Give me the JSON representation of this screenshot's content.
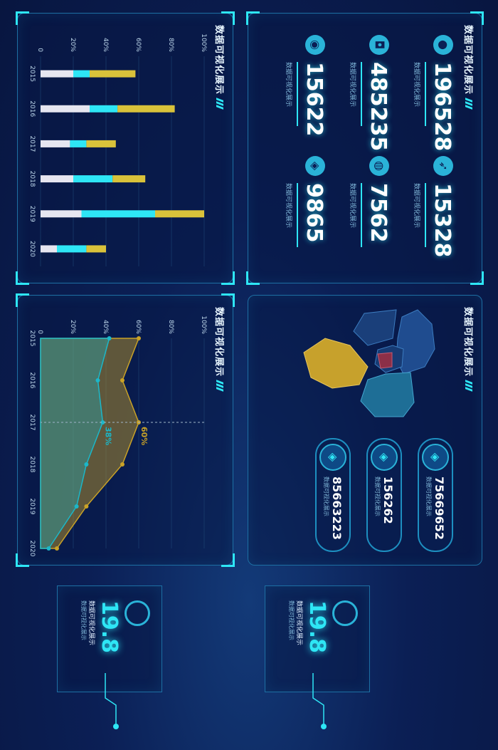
{
  "panel_title": "数据可视化展示",
  "stats": [
    {
      "icon": "bulb-icon",
      "glyph": "●",
      "value": "196528",
      "caption": "数据可视化展示"
    },
    {
      "icon": "rocket-icon",
      "glyph": "➶",
      "value": "15328",
      "caption": "数据可视化展示"
    },
    {
      "icon": "robot-icon",
      "glyph": "◘",
      "value": "485235",
      "caption": "数据可视化展示"
    },
    {
      "icon": "globe-icon",
      "glyph": "◍",
      "value": "7562",
      "caption": "数据可视化展示"
    },
    {
      "icon": "planet-icon",
      "glyph": "◉",
      "value": "15622",
      "caption": "数据可视化展示"
    },
    {
      "icon": "cube-icon",
      "glyph": "◈",
      "value": "9865",
      "caption": "数据可视化展示"
    }
  ],
  "pills": [
    {
      "value": "75669652",
      "caption": "数据可视化展示"
    },
    {
      "value": "156262",
      "caption": "数据可视化展示"
    },
    {
      "value": "85663223",
      "caption": "数据可视化展示"
    }
  ],
  "kpis": [
    {
      "value": "19.8",
      "caption": "数据可视化展示",
      "sub": "数据可视化展示"
    },
    {
      "value": "19.8",
      "caption": "数据可视化展示",
      "sub": "数据可视化展示"
    }
  ],
  "colors": {
    "accent": "#2ee6f5",
    "gold": "#c9a227",
    "teal": "#1bb7c9",
    "map_gold": "#c7a12c",
    "map_red": "#8c2f47",
    "map_blue": "#1f4c8f",
    "map_teal": "#1e6e96"
  },
  "chart_data": [
    {
      "type": "bar",
      "categories": [
        "2015",
        "2016",
        "2017",
        "2018",
        "2019",
        "2020"
      ],
      "yticks": [
        "0",
        "20%",
        "40%",
        "60%",
        "80%",
        "100%"
      ],
      "ylim": [
        0,
        100
      ],
      "series": [
        {
          "values": [
            20,
            30,
            18,
            20,
            25,
            10
          ]
        },
        {
          "values": [
            10,
            17,
            10,
            24,
            45,
            18
          ]
        },
        {
          "values": [
            28,
            35,
            18,
            20,
            30,
            12
          ]
        }
      ]
    },
    {
      "type": "area",
      "categories": [
        "2015",
        "2016",
        "2017",
        "2018",
        "2019",
        "2020"
      ],
      "yticks": [
        "0",
        "20%",
        "40%",
        "60%",
        "80%",
        "100%"
      ],
      "ylim": [
        0,
        100
      ],
      "series": [
        {
          "values": [
            60,
            50,
            60,
            50,
            28,
            10
          ]
        },
        {
          "values": [
            42,
            35,
            38,
            28,
            22,
            5
          ]
        }
      ],
      "annotations": [
        "60%",
        "38%"
      ]
    }
  ]
}
